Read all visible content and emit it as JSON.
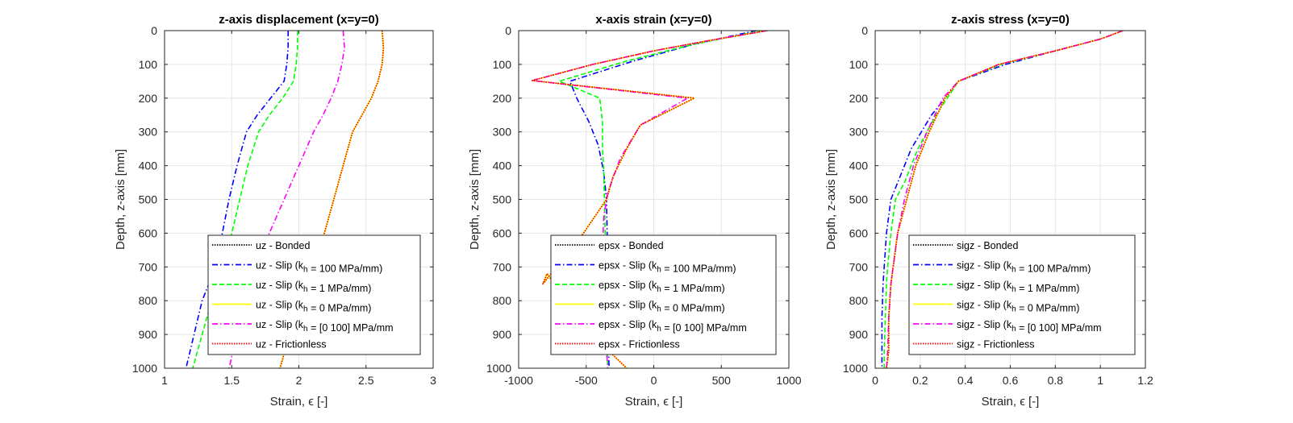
{
  "chart_data": [
    {
      "type": "line",
      "title": "z-axis displacement (x=y=0)",
      "xlabel": "Strain, ϵ [-]",
      "ylabel": "Depth, z-axis [mm]",
      "xlim": [
        1,
        3
      ],
      "ylim": [
        0,
        1000
      ],
      "y_reversed": true,
      "grid": true,
      "xticks": [
        1,
        1.5,
        2,
        2.5,
        3
      ],
      "xtick_labels": [
        "1",
        "1.5",
        "2",
        "2.5",
        "3"
      ],
      "yticks": [
        0,
        100,
        200,
        300,
        400,
        500,
        600,
        700,
        800,
        900,
        1000
      ],
      "ytick_labels": [
        "0",
        "100",
        "200",
        "300",
        "400",
        "500",
        "600",
        "700",
        "800",
        "900",
        "1000"
      ],
      "legend_position": "bottom-right",
      "series": [
        {
          "name": "uz - Bonded",
          "color": "#000000",
          "style": "dotted",
          "x": [
            2.62,
            2.63,
            2.62,
            2.59,
            2.54,
            2.47,
            2.4,
            2.33,
            2.26,
            2.19,
            2.12,
            2.05,
            1.99,
            1.93,
            1.86
          ],
          "y": [
            0,
            50,
            100,
            150,
            200,
            250,
            300,
            400,
            500,
            600,
            700,
            750,
            800,
            900,
            1000
          ]
        },
        {
          "name": "uz - Slip (k_h = 100 MPa/mm)",
          "color": "#0000ff",
          "style": "dashdot",
          "x": [
            1.92,
            1.92,
            1.91,
            1.89,
            1.79,
            1.69,
            1.61,
            1.54,
            1.48,
            1.43,
            1.38,
            1.33,
            1.28,
            1.22,
            1.16
          ],
          "y": [
            0,
            50,
            100,
            150,
            200,
            250,
            300,
            400,
            500,
            600,
            700,
            750,
            800,
            900,
            1000
          ]
        },
        {
          "name": "uz - Slip (k_h = 1 MPa/mm)",
          "color": "#00ff00",
          "style": "dashed",
          "x": [
            1.99,
            1.99,
            1.98,
            1.96,
            1.88,
            1.78,
            1.7,
            1.62,
            1.56,
            1.5,
            1.45,
            1.4,
            1.35,
            1.28,
            1.21
          ],
          "y": [
            0,
            50,
            100,
            150,
            200,
            250,
            300,
            400,
            500,
            600,
            700,
            750,
            800,
            900,
            1000
          ]
        },
        {
          "name": "uz - Slip (k_h = 0 MPa/mm)",
          "color": "#ffff00",
          "style": "solid",
          "x": [
            2.62,
            2.63,
            2.62,
            2.59,
            2.54,
            2.47,
            2.4,
            2.33,
            2.26,
            2.19,
            2.12,
            2.05,
            1.99,
            1.93,
            1.86
          ],
          "y": [
            0,
            50,
            100,
            150,
            200,
            250,
            300,
            400,
            500,
            600,
            700,
            750,
            800,
            900,
            1000
          ]
        },
        {
          "name": "uz - Slip (k_h = [0 100] MPa/mm",
          "color": "#ff00ff",
          "style": "dashdot",
          "x": [
            2.33,
            2.34,
            2.32,
            2.29,
            2.24,
            2.18,
            2.11,
            2.0,
            1.89,
            1.78,
            1.69,
            1.64,
            1.59,
            1.54,
            1.48
          ],
          "y": [
            0,
            50,
            100,
            150,
            200,
            250,
            300,
            400,
            500,
            600,
            700,
            750,
            800,
            900,
            1000
          ]
        },
        {
          "name": "uz - Frictionless",
          "color": "#ff0000",
          "style": "dotted",
          "x": [
            2.62,
            2.63,
            2.62,
            2.59,
            2.54,
            2.47,
            2.4,
            2.33,
            2.26,
            2.19,
            2.12,
            2.05,
            1.99,
            1.93,
            1.86
          ],
          "y": [
            0,
            50,
            100,
            150,
            200,
            250,
            300,
            400,
            500,
            600,
            700,
            750,
            800,
            900,
            1000
          ]
        }
      ]
    },
    {
      "type": "line",
      "title": "x-axis strain (x=y=0)",
      "xlabel": "Strain, ϵ [-]",
      "ylabel": "Depth, z-axis [mm]",
      "xlim": [
        -1000,
        1000
      ],
      "ylim": [
        0,
        1000
      ],
      "y_reversed": true,
      "grid": true,
      "xticks": [
        -1000,
        -500,
        0,
        500,
        1000
      ],
      "xtick_labels": [
        "-1000",
        "-500",
        "0",
        "500",
        "1000"
      ],
      "yticks": [
        0,
        100,
        200,
        300,
        400,
        500,
        600,
        700,
        800,
        900,
        1000
      ],
      "ytick_labels": [
        "0",
        "100",
        "200",
        "300",
        "400",
        "500",
        "600",
        "700",
        "800",
        "900",
        "1000"
      ],
      "legend_position": "bottom-right",
      "series": [
        {
          "name": "epsx - Bonded",
          "color": "#000000",
          "style": "dotted",
          "x": [
            840,
            400,
            0,
            -450,
            -900,
            300,
            -100,
            -200,
            -300,
            -350,
            -520,
            -680,
            -820,
            -790,
            -560,
            -330,
            -200
          ],
          "y": [
            0,
            30,
            60,
            100,
            148,
            200,
            280,
            350,
            430,
            500,
            600,
            680,
            750,
            720,
            850,
            950,
            1000
          ]
        },
        {
          "name": "epsx - Slip (k_h = 100 MPa/mm)",
          "color": "#0000ff",
          "style": "dashdot",
          "x": [
            760,
            300,
            -150,
            -620,
            -570,
            -480,
            -410,
            -370,
            -350,
            -345,
            -345,
            -343,
            -340,
            -335,
            -330
          ],
          "y": [
            0,
            40,
            90,
            150,
            200,
            270,
            340,
            420,
            500,
            600,
            700,
            800,
            880,
            950,
            1000
          ]
        },
        {
          "name": "epsx - Slip (k_h = 1 MPa/mm)",
          "color": "#00ff00",
          "style": "dashed",
          "x": [
            800,
            300,
            -200,
            -700,
            -400,
            -380,
            -380,
            -370,
            -365,
            -360,
            -355,
            -352,
            -350,
            -345,
            -340
          ],
          "y": [
            0,
            40,
            90,
            150,
            200,
            270,
            340,
            420,
            500,
            600,
            700,
            800,
            880,
            950,
            1000
          ]
        },
        {
          "name": "epsx - Slip (k_h = 0 MPa/mm)",
          "color": "#ffff00",
          "style": "solid",
          "x": [
            840,
            400,
            0,
            -450,
            -900,
            300,
            -100,
            -200,
            -300,
            -350,
            -520,
            -680,
            -820,
            -790,
            -560,
            -330,
            -200
          ],
          "y": [
            0,
            30,
            60,
            100,
            148,
            200,
            280,
            350,
            430,
            500,
            600,
            680,
            750,
            720,
            850,
            950,
            1000
          ]
        },
        {
          "name": "epsx - Slip (k_h = [0 100] MPa/mm",
          "color": "#ff00ff",
          "style": "dashdot",
          "x": [
            840,
            400,
            0,
            -450,
            -900,
            250,
            -100,
            -250,
            -340,
            -370,
            -380,
            -370,
            -360,
            -350,
            -340
          ],
          "y": [
            0,
            30,
            60,
            100,
            148,
            200,
            280,
            380,
            480,
            550,
            650,
            750,
            850,
            950,
            1000
          ]
        },
        {
          "name": "epsx - Frictionless",
          "color": "#ff0000",
          "style": "dotted",
          "x": [
            840,
            400,
            0,
            -450,
            -900,
            300,
            -100,
            -200,
            -300,
            -350,
            -520,
            -680,
            -820,
            -790,
            -560,
            -330,
            -200
          ],
          "y": [
            0,
            30,
            60,
            100,
            148,
            200,
            280,
            350,
            430,
            500,
            600,
            680,
            750,
            720,
            850,
            950,
            1000
          ]
        }
      ]
    },
    {
      "type": "line",
      "title": "z-axis stress (x=y=0)",
      "xlabel": "Strain, ϵ [-]",
      "ylabel": "Depth, z-axis [mm]",
      "xlim": [
        0,
        1.2
      ],
      "ylim": [
        0,
        1000
      ],
      "y_reversed": true,
      "grid": true,
      "xticks": [
        0,
        0.2,
        0.4,
        0.6,
        0.8,
        1,
        1.2
      ],
      "xtick_labels": [
        "0",
        "0.2",
        "0.4",
        "0.6",
        "0.8",
        "1",
        "1.2"
      ],
      "yticks": [
        0,
        100,
        200,
        300,
        400,
        500,
        600,
        700,
        800,
        900,
        1000
      ],
      "ytick_labels": [
        "0",
        "100",
        "200",
        "300",
        "400",
        "500",
        "600",
        "700",
        "800",
        "900",
        "1000"
      ],
      "legend_position": "bottom-right",
      "series": [
        {
          "name": "sigz - Bonded",
          "color": "#000000",
          "style": "dotted",
          "x": [
            1.1,
            1.0,
            0.8,
            0.55,
            0.37,
            0.31,
            0.24,
            0.18,
            0.14,
            0.1,
            0.08,
            0.07,
            0.06,
            0.06,
            0.05
          ],
          "y": [
            0,
            25,
            60,
            100,
            150,
            200,
            300,
            400,
            500,
            600,
            700,
            750,
            850,
            950,
            1000
          ]
        },
        {
          "name": "sigz - Slip (k_h = 100 MPa/mm)",
          "color": "#0000ff",
          "style": "dashdot",
          "x": [
            1.1,
            1.0,
            0.8,
            0.58,
            0.37,
            0.25,
            0.16,
            0.1,
            0.07,
            0.05,
            0.04,
            0.035,
            0.03,
            0.03,
            0.03
          ],
          "y": [
            0,
            25,
            60,
            100,
            150,
            250,
            350,
            450,
            500,
            600,
            700,
            750,
            850,
            950,
            1000
          ]
        },
        {
          "name": "sigz - Slip (k_h = 1 MPa/mm)",
          "color": "#00ff00",
          "style": "dashed",
          "x": [
            1.1,
            1.0,
            0.8,
            0.56,
            0.37,
            0.27,
            0.19,
            0.13,
            0.09,
            0.07,
            0.055,
            0.05,
            0.045,
            0.04,
            0.04
          ],
          "y": [
            0,
            25,
            60,
            100,
            150,
            250,
            350,
            450,
            500,
            600,
            700,
            750,
            850,
            950,
            1000
          ]
        },
        {
          "name": "sigz - Slip (k_h = 0 MPa/mm)",
          "color": "#ffff00",
          "style": "solid",
          "x": [
            1.1,
            1.0,
            0.8,
            0.55,
            0.37,
            0.31,
            0.24,
            0.18,
            0.14,
            0.1,
            0.08,
            0.07,
            0.06,
            0.06,
            0.05
          ],
          "y": [
            0,
            25,
            60,
            100,
            150,
            200,
            300,
            400,
            500,
            600,
            700,
            750,
            850,
            950,
            1000
          ]
        },
        {
          "name": "sigz - Slip (k_h = [0 100] MPa/mm",
          "color": "#ff00ff",
          "style": "dashdot",
          "x": [
            1.1,
            1.0,
            0.8,
            0.55,
            0.37,
            0.3,
            0.23,
            0.17,
            0.13,
            0.1,
            0.08,
            0.07,
            0.06,
            0.055,
            0.05
          ],
          "y": [
            0,
            25,
            60,
            100,
            150,
            200,
            300,
            400,
            500,
            600,
            700,
            750,
            850,
            950,
            1000
          ]
        },
        {
          "name": "sigz - Frictionless",
          "color": "#ff0000",
          "style": "dotted",
          "x": [
            1.1,
            1.0,
            0.8,
            0.55,
            0.37,
            0.31,
            0.24,
            0.18,
            0.14,
            0.1,
            0.08,
            0.07,
            0.06,
            0.06,
            0.05
          ],
          "y": [
            0,
            25,
            60,
            100,
            150,
            200,
            300,
            400,
            500,
            600,
            700,
            750,
            850,
            950,
            1000
          ]
        }
      ]
    }
  ]
}
